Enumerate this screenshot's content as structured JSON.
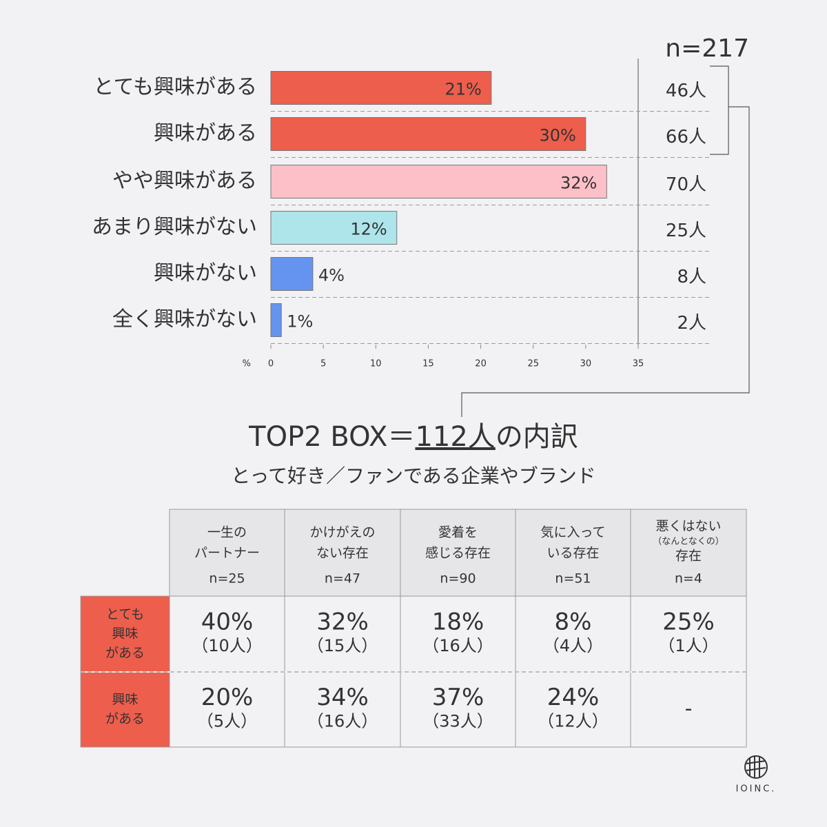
{
  "chart_data": {
    "type": "bar",
    "orientation": "horizontal",
    "categories": [
      "とても興味がある",
      "興味がある",
      "やや興味がある",
      "あまり興味がない",
      "興味がない",
      "全く興味がない"
    ],
    "values": [
      21,
      30,
      32,
      12,
      4,
      1
    ],
    "value_labels": [
      "21%",
      "30%",
      "32%",
      "12%",
      "4%",
      "1%"
    ],
    "colors": [
      "#ee5e4c",
      "#ee5e4c",
      "#fdbfc8",
      "#ade5eb",
      "#6494f0",
      "#6494f0"
    ],
    "xlim": [
      0,
      35
    ],
    "xticks": [
      0,
      5,
      10,
      15,
      20,
      25,
      30,
      35
    ],
    "x_unit": "%",
    "sample_size": "n=217",
    "counts": [
      "46人",
      "66人",
      "70人",
      "25人",
      "8人",
      "2人"
    ]
  },
  "breakdown": {
    "title": [
      "TOP2 BOX＝",
      "112人",
      "の内訳"
    ],
    "subtitle": "とって好き／ファンである企業やブランド",
    "columns": [
      {
        "lines": [
          "一生の",
          "パートナー"
        ],
        "n": "n=25"
      },
      {
        "lines": [
          "かけがえの",
          "ない存在"
        ],
        "n": "n=47"
      },
      {
        "lines": [
          "愛着を",
          "感じる存在"
        ],
        "n": "n=90"
      },
      {
        "lines": [
          "気に入って",
          "いる存在"
        ],
        "n": "n=51"
      },
      {
        "lines": [
          "悪くはない",
          "（なんとなくの）",
          "存在"
        ],
        "n": "n=4"
      }
    ],
    "rows": [
      {
        "lines": [
          "とても",
          "興味",
          "がある"
        ],
        "cells": [
          {
            "pct": "40%",
            "count": "（10人）"
          },
          {
            "pct": "32%",
            "count": "（15人）"
          },
          {
            "pct": "18%",
            "count": "（16人）"
          },
          {
            "pct": "8%",
            "count": "（4人）"
          },
          {
            "pct": "25%",
            "count": "（1人）"
          }
        ]
      },
      {
        "lines": [
          "興味",
          "がある"
        ],
        "cells": [
          {
            "pct": "20%",
            "count": "（5人）"
          },
          {
            "pct": "34%",
            "count": "（16人）"
          },
          {
            "pct": "37%",
            "count": "（33人）"
          },
          {
            "pct": "24%",
            "count": "（12人）"
          },
          {
            "pct": "-"
          }
        ]
      }
    ]
  },
  "logo": "IOINC."
}
